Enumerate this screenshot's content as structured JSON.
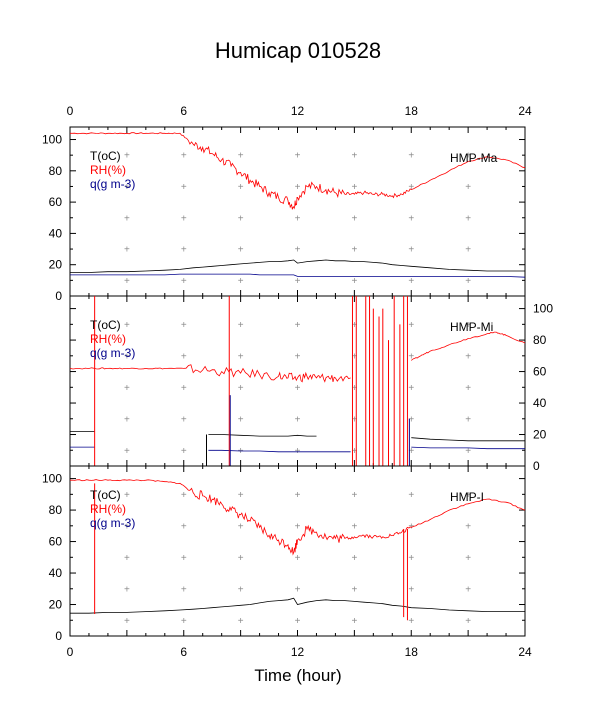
{
  "title": "Humicap 010528",
  "xlabel": "Time (hour)",
  "colors": {
    "T": "#000000",
    "RH": "#ff0000",
    "q": "#00008b"
  },
  "chart_data": [
    {
      "type": "line",
      "panel_label": "HMP-Ma",
      "legend": [
        "T(oC)",
        "RH(%)",
        "q(g m-3)"
      ],
      "xlim": [
        0,
        24
      ],
      "ylim": [
        0,
        108
      ],
      "x_ticks": [
        "0",
        "6",
        "12",
        "18",
        "24"
      ],
      "y_ticks": [
        "0",
        "20",
        "40",
        "60",
        "80",
        "100"
      ],
      "y_axis_side": "left",
      "x": [
        0,
        1,
        2,
        3,
        4,
        5,
        5.8,
        6.5,
        7,
        7.5,
        8,
        8.5,
        9,
        9.5,
        10,
        10.5,
        11,
        11.5,
        11.8,
        12,
        12.5,
        13,
        13.5,
        14,
        14.5,
        15,
        15.5,
        16,
        16.5,
        17,
        17.5,
        18,
        19,
        20,
        21,
        22,
        23,
        24
      ],
      "series": [
        {
          "name": "RH(%)",
          "key": "RH",
          "values": [
            104,
            104,
            104,
            104,
            104,
            104,
            104,
            97,
            95,
            91,
            87,
            83,
            79,
            74,
            70,
            66,
            63,
            61,
            57,
            63,
            70,
            70,
            68,
            66,
            65,
            65,
            66,
            65,
            65,
            64,
            65,
            68,
            74,
            80,
            86,
            89,
            87,
            82
          ]
        },
        {
          "name": "T(oC)",
          "key": "T",
          "values": [
            15,
            15,
            15.5,
            15.5,
            16,
            16.5,
            17,
            18,
            18.5,
            19,
            19.5,
            20,
            20.5,
            21,
            21.5,
            22,
            22,
            22.5,
            23,
            21,
            22,
            22.5,
            23,
            22.5,
            22.5,
            22,
            22,
            21.5,
            21,
            20,
            19.5,
            19,
            18,
            17,
            16.5,
            16,
            16,
            16
          ]
        },
        {
          "name": "q(g m-3)",
          "key": "q",
          "values": [
            13.5,
            13.5,
            13.5,
            13.5,
            13.5,
            13.5,
            14,
            14,
            14,
            14,
            14,
            14,
            14,
            14,
            13.5,
            13.5,
            13.5,
            13.5,
            13.5,
            12.5,
            12.5,
            12.5,
            12.5,
            12.5,
            12.5,
            12.5,
            12.5,
            12.5,
            12.5,
            12.5,
            12.5,
            12.5,
            12.5,
            12.5,
            12.5,
            12.5,
            12.5,
            12
          ]
        }
      ],
      "spikes": []
    },
    {
      "type": "line",
      "panel_label": "HMP-Mi",
      "legend": [
        "T(oC)",
        "RH(%)",
        "q(g m-3)"
      ],
      "xlim": [
        0,
        24
      ],
      "ylim": [
        0,
        108
      ],
      "x_ticks": [
        "0",
        "6",
        "12",
        "18",
        "24"
      ],
      "y_ticks": [
        "0",
        "20",
        "40",
        "60",
        "80",
        "100"
      ],
      "y_axis_side": "right",
      "x": [
        0,
        1.3,
        2,
        3,
        4,
        5,
        6,
        7,
        8,
        9,
        10,
        11,
        11.5,
        12,
        12.5,
        13,
        13.5,
        14,
        14.8
      ],
      "series": [
        {
          "name": "RH(%)",
          "key": "RH",
          "values": [
            62,
            62,
            62,
            62,
            62,
            62,
            62,
            61,
            60,
            59,
            58,
            57,
            56,
            56,
            57,
            56,
            56,
            56,
            56
          ]
        },
        {
          "name": "T(oC)",
          "key": "T",
          "values": [
            22,
            22,
            null,
            null,
            null,
            null,
            null,
            null,
            null,
            null,
            null,
            null,
            null,
            null,
            null,
            null,
            null,
            null,
            null
          ]
        },
        {
          "name": "q(g m-3)",
          "key": "q",
          "values": [
            12,
            12,
            null,
            null,
            null,
            null,
            null,
            null,
            null,
            null,
            null,
            null,
            null,
            null,
            null,
            null,
            null,
            null,
            null
          ]
        }
      ],
      "segments": [
        {
          "key": "T",
          "x": [
            7.3,
            8,
            9,
            10,
            11,
            11.5,
            12,
            12.5,
            13
          ],
          "values": [
            20,
            20,
            19.5,
            19,
            19,
            19,
            19.5,
            19,
            19
          ]
        },
        {
          "key": "q",
          "x": [
            7.3,
            8,
            9,
            10,
            11,
            12,
            13,
            14,
            14.8
          ],
          "values": [
            10,
            10,
            9.5,
            9.5,
            9,
            9,
            9,
            9,
            9
          ]
        },
        {
          "key": "RH",
          "x": [
            18,
            18.5,
            19,
            20,
            21,
            22,
            22.5,
            23,
            24
          ],
          "values": [
            67,
            70,
            73,
            77,
            81,
            84,
            85,
            83,
            78
          ]
        },
        {
          "key": "T",
          "x": [
            18,
            19,
            20,
            21,
            22,
            23,
            24
          ],
          "values": [
            18,
            17,
            16.5,
            16,
            16,
            16,
            16
          ]
        },
        {
          "key": "q",
          "x": [
            18,
            19,
            20,
            21,
            22,
            23,
            24
          ],
          "values": [
            12,
            11.5,
            11.5,
            11.5,
            11,
            11,
            11
          ]
        }
      ],
      "spikes": [
        {
          "x": 1.3,
          "from": 0,
          "to": 108,
          "key": "RH"
        },
        {
          "x": 7.2,
          "from": 0,
          "to": 20,
          "key": "T"
        },
        {
          "x": 8.4,
          "from": 0,
          "to": 108,
          "key": "RH"
        },
        {
          "x": 8.45,
          "from": 0,
          "to": 45,
          "key": "q"
        },
        {
          "x": 14.9,
          "from": 0,
          "to": 108,
          "key": "RH"
        },
        {
          "x": 15.1,
          "from": 0,
          "to": 108,
          "key": "RH"
        },
        {
          "x": 15.6,
          "from": 0,
          "to": 108,
          "key": "RH"
        },
        {
          "x": 15.8,
          "from": 0,
          "to": 108,
          "key": "RH"
        },
        {
          "x": 16.0,
          "from": 0,
          "to": 100,
          "key": "RH"
        },
        {
          "x": 16.3,
          "from": 0,
          "to": 95,
          "key": "RH"
        },
        {
          "x": 16.5,
          "from": 0,
          "to": 100,
          "key": "RH"
        },
        {
          "x": 16.8,
          "from": 0,
          "to": 80,
          "key": "RH"
        },
        {
          "x": 17.1,
          "from": 0,
          "to": 108,
          "key": "RH"
        },
        {
          "x": 17.4,
          "from": 0,
          "to": 90,
          "key": "RH"
        },
        {
          "x": 17.6,
          "from": 0,
          "to": 108,
          "key": "RH"
        },
        {
          "x": 17.8,
          "from": 0,
          "to": 108,
          "key": "RH"
        },
        {
          "x": 17.9,
          "from": 0,
          "to": 30,
          "key": "q"
        }
      ]
    },
    {
      "type": "line",
      "panel_label": "HMP-I",
      "legend": [
        "T(oC)",
        "RH(%)",
        "q(g m-3)"
      ],
      "xlim": [
        0,
        24
      ],
      "ylim": [
        0,
        108
      ],
      "x_ticks": [
        "0",
        "6",
        "12",
        "18",
        "24"
      ],
      "y_ticks": [
        "0",
        "20",
        "40",
        "60",
        "80",
        "100"
      ],
      "y_axis_side": "left",
      "x": [
        0,
        1,
        2,
        3,
        4,
        5,
        5.8,
        6.5,
        7,
        7.5,
        8,
        8.5,
        9,
        9.5,
        10,
        10.5,
        11,
        11.5,
        11.8,
        12,
        12.5,
        13,
        13.5,
        14,
        14.5,
        15,
        15.5,
        16,
        16.5,
        17,
        17.5,
        18,
        19,
        20,
        21,
        22,
        23,
        24
      ],
      "series": [
        {
          "name": "RH(%)",
          "key": "RH",
          "values": [
            99,
            99,
            99,
            99,
            99,
            98,
            97,
            91,
            89,
            87,
            84,
            80,
            77,
            73,
            69,
            64,
            61,
            58,
            53,
            61,
            68,
            66,
            63,
            62,
            62,
            63,
            64,
            63,
            63,
            64,
            66,
            69,
            74,
            80,
            84,
            87,
            85,
            80
          ]
        },
        {
          "name": "T(oC)",
          "key": "T",
          "values": [
            14.5,
            14.5,
            15,
            15,
            15.5,
            16,
            16.5,
            17,
            17.5,
            18,
            18.5,
            19,
            19.5,
            20,
            21,
            22,
            22.5,
            23,
            24,
            20,
            21.5,
            22.5,
            23,
            22.5,
            22.5,
            22,
            21.5,
            21,
            20.5,
            19.5,
            19,
            18,
            17.5,
            16.5,
            16,
            15.5,
            15.5,
            15.5
          ]
        }
      ],
      "spikes": [
        {
          "x": 1.3,
          "from": 14,
          "to": 97,
          "key": "RH"
        },
        {
          "x": 17.6,
          "from": 12,
          "to": 68,
          "key": "RH"
        },
        {
          "x": 17.8,
          "from": 10,
          "to": 68,
          "key": "RH"
        }
      ]
    }
  ]
}
